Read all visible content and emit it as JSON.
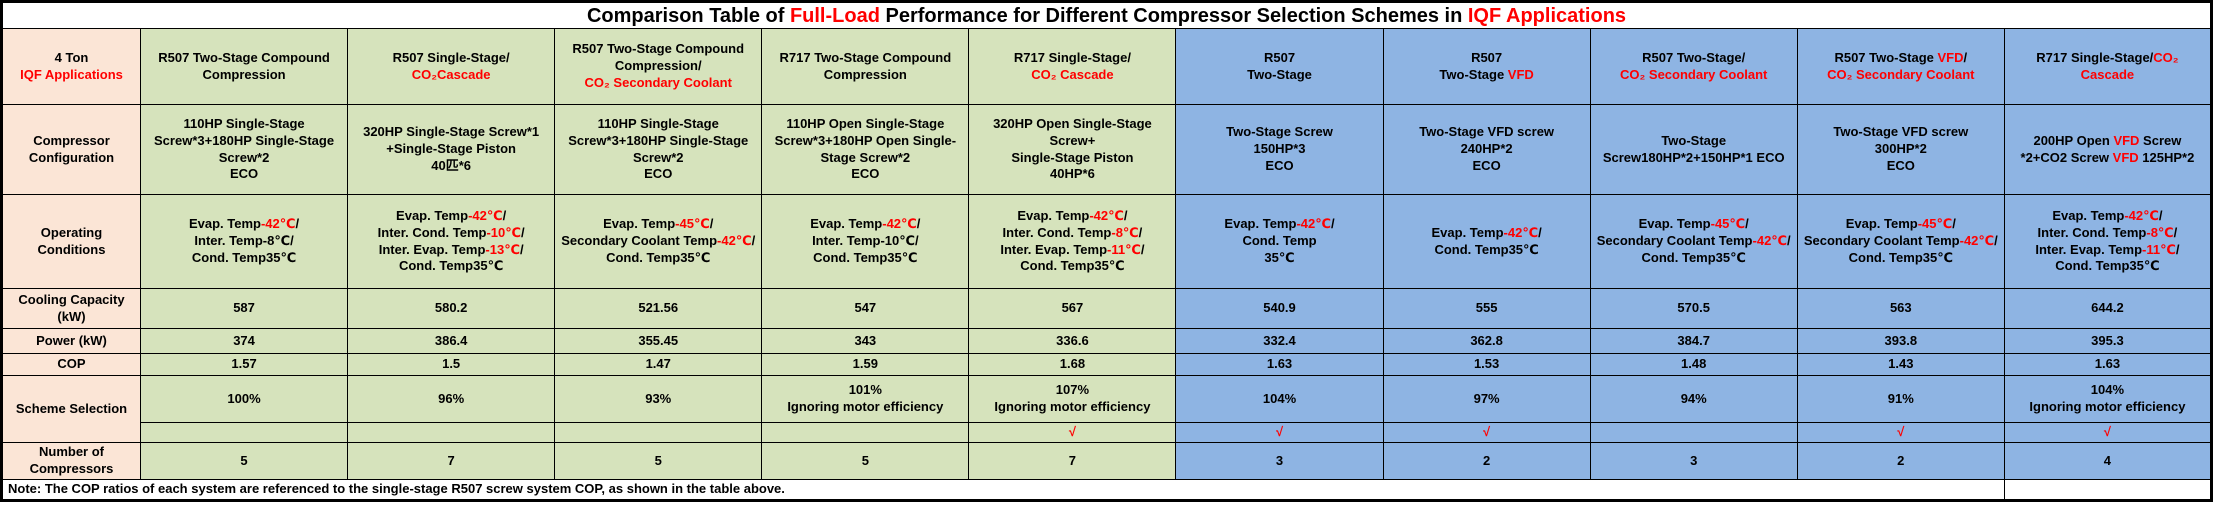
{
  "title": [
    {
      "t": "Comparison Table of "
    },
    {
      "t": "Full-Load",
      "c": "#ff0000"
    },
    {
      "t": " Performance for Different Compressor Selection Schemes in "
    },
    {
      "t": "IQF Applications",
      "c": "#ff0000"
    }
  ],
  "row_labels": {
    "corner": [
      {
        "t": "4 Ton\n"
      },
      {
        "t": "IQF Applications",
        "c": "#ff0000"
      }
    ],
    "config": "Compressor Configuration",
    "conditions": "Operating Conditions",
    "cooling": "Cooling Capacity (kW)",
    "power": "Power (kW)",
    "cop": "COP",
    "scheme_selection": "Scheme Selection",
    "count": "Number of\nCompressors"
  },
  "note": "Note: The COP ratios of each system are referenced to the single-stage R507 screw system COP, as shown in the table above.",
  "colors": {
    "label_bg": "#fbe5d6",
    "green_bg": "#d6e3bc",
    "blue_bg": "#8eb4e3",
    "accent_red": "#ff0000"
  },
  "columns": [
    {
      "group": "green",
      "scheme": "R507 Two-Stage Compound Compression",
      "config": "110HP Single-Stage Screw*3+180HP Single-Stage Screw*2\nECO",
      "conditions": [
        {
          "t": "Evap. Temp"
        },
        {
          "t": "-42℃",
          "c": "#ff0000"
        },
        {
          "t": "/\nInter. Temp-8℃/\nCond. Temp35℃"
        }
      ],
      "cooling": "587",
      "power": "374",
      "cop": "1.57",
      "pct": "100%",
      "check": "",
      "count": "5"
    },
    {
      "group": "green",
      "scheme": [
        {
          "t": "R507 Single-Stage/\n"
        },
        {
          "t": "CO₂Cascade",
          "c": "#ff0000"
        }
      ],
      "config": "320HP Single-Stage Screw*1\n+Single-Stage Piston\n40匹*6",
      "conditions": [
        {
          "t": "Evap. Temp"
        },
        {
          "t": "-42℃",
          "c": "#ff0000"
        },
        {
          "t": "/\nInter. Cond. Temp"
        },
        {
          "t": "-10℃",
          "c": "#ff0000"
        },
        {
          "t": "/\nInter. Evap. Temp"
        },
        {
          "t": "-13℃",
          "c": "#ff0000"
        },
        {
          "t": "/\nCond. Temp35℃"
        }
      ],
      "cooling": "580.2",
      "power": "386.4",
      "cop": "1.5",
      "pct": "96%",
      "check": "",
      "count": "7"
    },
    {
      "group": "green",
      "scheme": [
        {
          "t": "R507 Two-Stage Compound Compression/\n"
        },
        {
          "t": "CO₂ Secondary Coolant",
          "c": "#ff0000"
        }
      ],
      "config": "110HP Single-Stage Screw*3+180HP Single-Stage Screw*2\nECO",
      "conditions": [
        {
          "t": "Evap. Temp"
        },
        {
          "t": "-45℃",
          "c": "#ff0000"
        },
        {
          "t": "/\nSecondary Coolant Temp"
        },
        {
          "t": "-42℃",
          "c": "#ff0000"
        },
        {
          "t": "/\nCond. Temp35℃"
        }
      ],
      "cooling": "521.56",
      "power": "355.45",
      "cop": "1.47",
      "pct": "93%",
      "check": "",
      "count": "5"
    },
    {
      "group": "green",
      "scheme": "R717 Two-Stage Compound Compression",
      "config": "110HP Open Single-Stage Screw*3+180HP Open Single-Stage Screw*2\nECO",
      "conditions": [
        {
          "t": "Evap. Temp"
        },
        {
          "t": "-42℃",
          "c": "#ff0000"
        },
        {
          "t": "/\nInter. Temp-10℃/\nCond. Temp35℃"
        }
      ],
      "cooling": "547",
      "power": "343",
      "cop": "1.59",
      "pct": "101%\nIgnoring motor efficiency",
      "check": "",
      "count": "5"
    },
    {
      "group": "green",
      "scheme": [
        {
          "t": "R717 Single-Stage/\n"
        },
        {
          "t": "CO₂ Cascade",
          "c": "#ff0000"
        }
      ],
      "config": "320HP Open Single-Stage Screw+\nSingle-Stage Piston\n40HP*6",
      "conditions": [
        {
          "t": "Evap. Temp"
        },
        {
          "t": "-42℃",
          "c": "#ff0000"
        },
        {
          "t": "/\nInter. Cond. Temp"
        },
        {
          "t": "-8℃",
          "c": "#ff0000"
        },
        {
          "t": "/\nInter. Evap. Temp"
        },
        {
          "t": "-11℃",
          "c": "#ff0000"
        },
        {
          "t": "/\nCond. Temp35℃"
        }
      ],
      "cooling": "567",
      "power": "336.6",
      "cop": "1.68",
      "pct": "107%\nIgnoring motor efficiency",
      "check": "√",
      "count": "7"
    },
    {
      "group": "blue",
      "scheme": "R507\nTwo-Stage",
      "config": "Two-Stage Screw\n150HP*3\nECO",
      "conditions": [
        {
          "t": "Evap. Temp"
        },
        {
          "t": "-42℃",
          "c": "#ff0000"
        },
        {
          "t": "/\nCond. Temp\n35℃"
        }
      ],
      "cooling": "540.9",
      "power": "332.4",
      "cop": "1.63",
      "pct": "104%",
      "check": "√",
      "count": "3"
    },
    {
      "group": "blue",
      "scheme": [
        {
          "t": "R507\nTwo-Stage "
        },
        {
          "t": "VFD",
          "c": "#ff0000"
        }
      ],
      "config": "Two-Stage VFD screw\n240HP*2\nECO",
      "conditions": [
        {
          "t": "Evap. Temp"
        },
        {
          "t": "-42℃",
          "c": "#ff0000"
        },
        {
          "t": "/\nCond. Temp35℃"
        }
      ],
      "cooling": "555",
      "power": "362.8",
      "cop": "1.53",
      "pct": "97%",
      "check": "√",
      "count": "2"
    },
    {
      "group": "blue",
      "scheme": [
        {
          "t": "R507 Two-Stage/\n"
        },
        {
          "t": "CO₂ Secondary Coolant",
          "c": "#ff0000"
        }
      ],
      "config": "Two-Stage\nScrew180HP*2+150HP*1 ECO",
      "conditions": [
        {
          "t": "Evap. Temp"
        },
        {
          "t": "-45℃",
          "c": "#ff0000"
        },
        {
          "t": "/\nSecondary Coolant Temp"
        },
        {
          "t": "-42℃",
          "c": "#ff0000"
        },
        {
          "t": "/\nCond. Temp35℃"
        }
      ],
      "cooling": "570.5",
      "power": "384.7",
      "cop": "1.48",
      "pct": "94%",
      "check": "",
      "count": "3"
    },
    {
      "group": "blue",
      "scheme": [
        {
          "t": "R507 Two-Stage "
        },
        {
          "t": "VFD",
          "c": "#ff0000"
        },
        {
          "t": "/\n"
        },
        {
          "t": "CO₂ Secondary Coolant",
          "c": "#ff0000"
        }
      ],
      "config": "Two-Stage VFD screw\n300HP*2\nECO",
      "conditions": [
        {
          "t": "Evap. Temp"
        },
        {
          "t": "-45℃",
          "c": "#ff0000"
        },
        {
          "t": "/\nSecondary Coolant Temp"
        },
        {
          "t": "-42℃",
          "c": "#ff0000"
        },
        {
          "t": "/\nCond. Temp35℃"
        }
      ],
      "cooling": "563",
      "power": "393.8",
      "cop": "1.43",
      "pct": "91%",
      "check": "√",
      "count": "2"
    },
    {
      "group": "blue",
      "scheme": [
        {
          "t": "R717 Single-Stage/"
        },
        {
          "t": "CO₂ Cascade",
          "c": "#ff0000"
        }
      ],
      "config": [
        {
          "t": "200HP Open "
        },
        {
          "t": "VFD",
          "c": "#ff0000"
        },
        {
          "t": " Screw\n*2+CO2 Screw "
        },
        {
          "t": "VFD",
          "c": "#ff0000"
        },
        {
          "t": " 125HP*2"
        }
      ],
      "conditions": [
        {
          "t": "Evap. Temp"
        },
        {
          "t": "-42℃",
          "c": "#ff0000"
        },
        {
          "t": "/\nInter. Cond. Temp"
        },
        {
          "t": "-8℃",
          "c": "#ff0000"
        },
        {
          "t": "/\nInter. Evap. Temp"
        },
        {
          "t": "-11℃",
          "c": "#ff0000"
        },
        {
          "t": "/\nCond. Temp35℃"
        }
      ],
      "cooling": "644.2",
      "power": "395.3",
      "cop": "1.63",
      "pct": "104%\nIgnoring motor efficiency",
      "check": "√",
      "count": "4"
    }
  ]
}
